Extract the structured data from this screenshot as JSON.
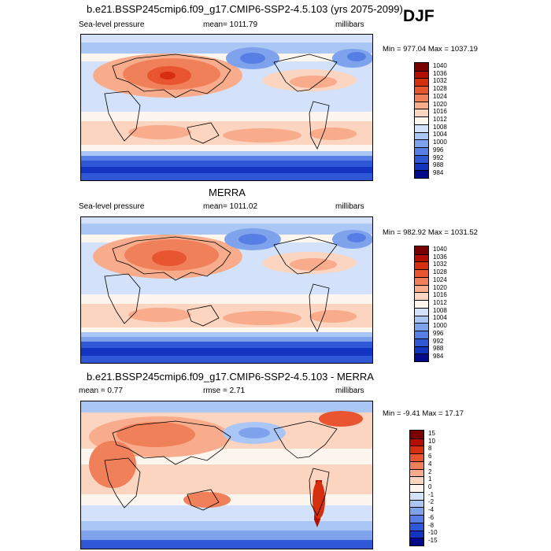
{
  "season": "DJF",
  "panels": [
    {
      "title": "b.e21.BSSP245cmip6.f09_g17.CMIP6-SSP2-4.5.103 (yrs 2075-2099)",
      "left": "Sea-level pressure",
      "center": "mean= 1011.79",
      "right": "millibars",
      "minmax": "Min = 977.04 Max = 1037.19",
      "levels": [
        "1040",
        "1036",
        "1032",
        "1028",
        "1024",
        "1020",
        "1016",
        "1012",
        "1008",
        "1004",
        "1000",
        "996",
        "992",
        "988",
        "984"
      ],
      "colors": [
        "#7a0000",
        "#b30e00",
        "#d62f10",
        "#e85530",
        "#f0805a",
        "#f8ac8c",
        "#fcd5c0",
        "#fdf6ee",
        "#d3e2fa",
        "#aac6f4",
        "#7ea2ec",
        "#567ee4",
        "#3058d6",
        "#1234c0",
        "#000a8a"
      ]
    },
    {
      "title": "MERRA",
      "left": "Sea-level pressure",
      "center": "mean= 1011.02",
      "right": "millibars",
      "minmax": "Min = 982.92 Max = 1031.52",
      "levels": [
        "1040",
        "1036",
        "1032",
        "1028",
        "1024",
        "1020",
        "1016",
        "1012",
        "1008",
        "1004",
        "1000",
        "996",
        "992",
        "988",
        "984"
      ],
      "colors": [
        "#7a0000",
        "#b30e00",
        "#d62f10",
        "#e85530",
        "#f0805a",
        "#f8ac8c",
        "#fcd5c0",
        "#fdf6ee",
        "#d3e2fa",
        "#aac6f4",
        "#7ea2ec",
        "#567ee4",
        "#3058d6",
        "#1234c0",
        "#000a8a"
      ]
    },
    {
      "title": "b.e21.BSSP245cmip6.f09_g17.CMIP6-SSP2-4.5.103 - MERRA",
      "left": "mean =   0.77",
      "center": "rmse =   2.71",
      "right": "millibars",
      "minmax": "Min =  -9.41 Max =  17.17",
      "levels": [
        "15",
        "10",
        "8",
        "6",
        "4",
        "2",
        "1",
        "0",
        "-1",
        "-2",
        "-4",
        "-6",
        "-8",
        "-10",
        "-15"
      ],
      "colors": [
        "#7a0000",
        "#b30e00",
        "#d62f10",
        "#e85530",
        "#f0805a",
        "#f8ac8c",
        "#fcd5c0",
        "#fdf6ee",
        "#d3e2fa",
        "#aac6f4",
        "#7ea2ec",
        "#567ee4",
        "#3058d6",
        "#1234c0",
        "#000a8a"
      ]
    }
  ]
}
